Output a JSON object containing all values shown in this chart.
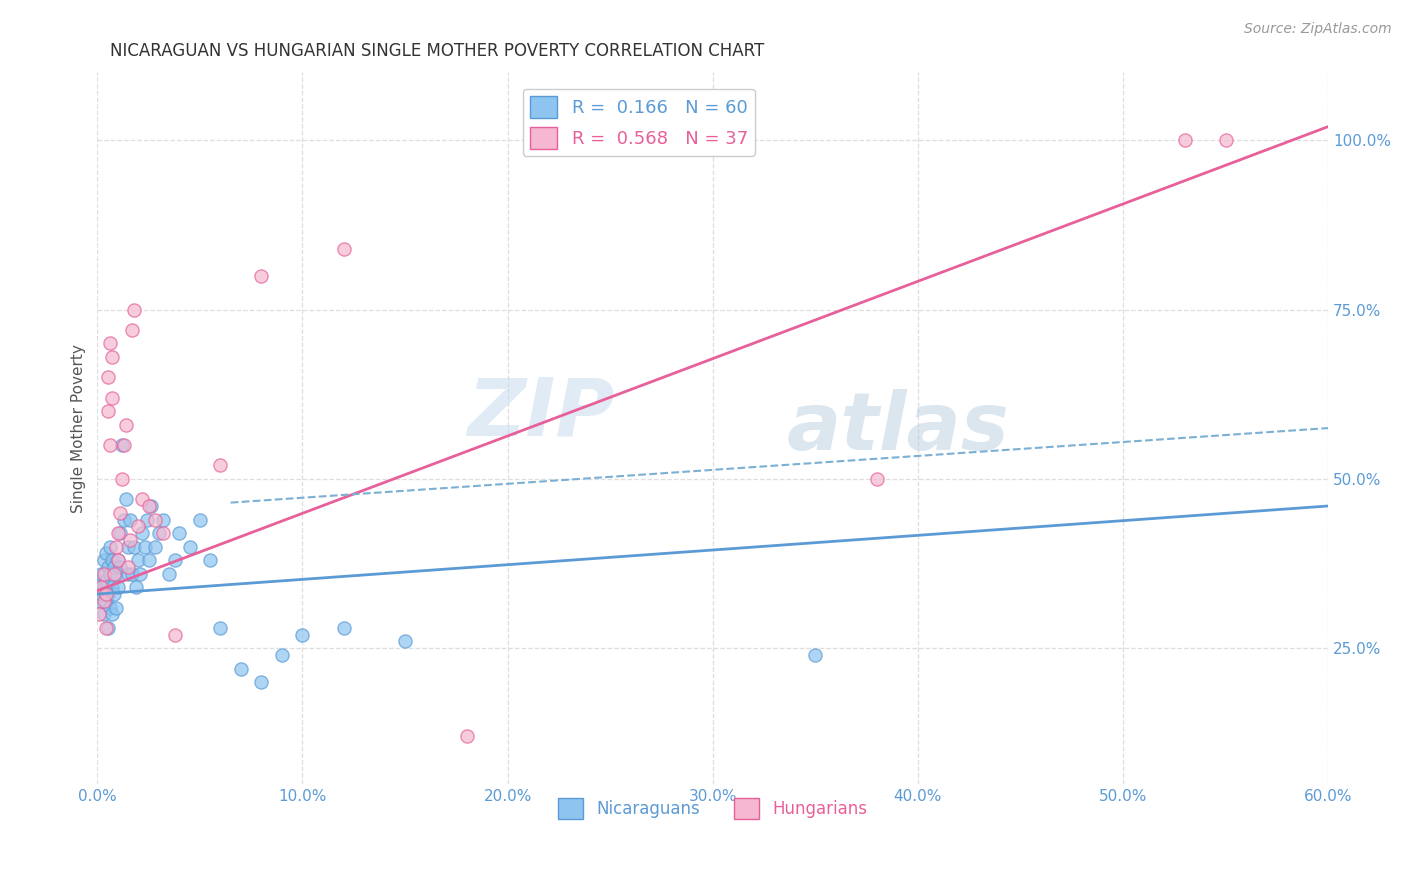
{
  "title": "NICARAGUAN VS HUNGARIAN SINGLE MOTHER POVERTY CORRELATION CHART",
  "source": "Source: ZipAtlas.com",
  "ylabel": "Single Mother Poverty",
  "right_yticklabels": [
    "25.0%",
    "50.0%",
    "75.0%",
    "100.0%"
  ],
  "right_yticks": [
    0.25,
    0.5,
    0.75,
    1.0
  ],
  "legend_blue": "R =  0.166   N = 60",
  "legend_pink": "R =  0.568   N = 37",
  "blue_color": "#8DC4F0",
  "pink_color": "#F5B8D0",
  "blue_edge": "#5B9BD5",
  "pink_edge": "#E8609A",
  "dashed_color": "#7BAFD4",
  "background_color": "#FFFFFF",
  "grid_color": "#DEDEDE",
  "scatter_alpha": 0.7,
  "scatter_size": 90,
  "xlim": [
    0.0,
    0.6
  ],
  "ylim": [
    0.05,
    1.1
  ],
  "blue_trend_x": [
    0.0,
    0.6
  ],
  "blue_trend_y": [
    0.33,
    0.46
  ],
  "pink_trend_x": [
    0.0,
    0.6
  ],
  "pink_trend_y": [
    0.335,
    1.02
  ],
  "dashed_trend_x": [
    0.065,
    0.6
  ],
  "dashed_trend_y": [
    0.465,
    0.575
  ],
  "watermark_zip": "ZIP",
  "watermark_atlas": "atlas",
  "xtick_labels": [
    "0.0%",
    "10.0%",
    "20.0%",
    "30.0%",
    "40.0%",
    "50.0%",
    "60.0%"
  ],
  "xtick_vals": [
    0.0,
    0.1,
    0.2,
    0.3,
    0.4,
    0.5,
    0.6
  ],
  "blue_scatter_x": [
    0.001,
    0.001,
    0.002,
    0.002,
    0.003,
    0.003,
    0.003,
    0.004,
    0.004,
    0.004,
    0.005,
    0.005,
    0.005,
    0.006,
    0.006,
    0.006,
    0.007,
    0.007,
    0.007,
    0.008,
    0.008,
    0.009,
    0.009,
    0.01,
    0.01,
    0.011,
    0.011,
    0.012,
    0.013,
    0.014,
    0.015,
    0.015,
    0.016,
    0.017,
    0.018,
    0.019,
    0.02,
    0.021,
    0.022,
    0.023,
    0.024,
    0.025,
    0.026,
    0.028,
    0.03,
    0.032,
    0.035,
    0.038,
    0.04,
    0.045,
    0.05,
    0.055,
    0.06,
    0.07,
    0.08,
    0.09,
    0.1,
    0.12,
    0.15,
    0.35
  ],
  "blue_scatter_y": [
    0.32,
    0.35,
    0.33,
    0.36,
    0.3,
    0.34,
    0.38,
    0.32,
    0.35,
    0.39,
    0.28,
    0.33,
    0.37,
    0.31,
    0.36,
    0.4,
    0.3,
    0.34,
    0.38,
    0.33,
    0.37,
    0.31,
    0.36,
    0.34,
    0.38,
    0.37,
    0.42,
    0.55,
    0.44,
    0.47,
    0.36,
    0.4,
    0.44,
    0.36,
    0.4,
    0.34,
    0.38,
    0.36,
    0.42,
    0.4,
    0.44,
    0.38,
    0.46,
    0.4,
    0.42,
    0.44,
    0.36,
    0.38,
    0.42,
    0.4,
    0.44,
    0.38,
    0.28,
    0.22,
    0.2,
    0.24,
    0.27,
    0.28,
    0.26,
    0.24
  ],
  "pink_scatter_x": [
    0.001,
    0.002,
    0.003,
    0.003,
    0.004,
    0.004,
    0.005,
    0.005,
    0.006,
    0.006,
    0.007,
    0.007,
    0.008,
    0.009,
    0.01,
    0.01,
    0.011,
    0.012,
    0.013,
    0.014,
    0.015,
    0.016,
    0.017,
    0.018,
    0.02,
    0.022,
    0.025,
    0.028,
    0.032,
    0.038,
    0.06,
    0.08,
    0.12,
    0.18,
    0.38,
    0.53,
    0.55
  ],
  "pink_scatter_y": [
    0.3,
    0.34,
    0.32,
    0.36,
    0.28,
    0.33,
    0.6,
    0.65,
    0.55,
    0.7,
    0.62,
    0.68,
    0.36,
    0.4,
    0.38,
    0.42,
    0.45,
    0.5,
    0.55,
    0.58,
    0.37,
    0.41,
    0.72,
    0.75,
    0.43,
    0.47,
    0.46,
    0.44,
    0.42,
    0.27,
    0.52,
    0.8,
    0.84,
    0.12,
    0.5,
    1.0,
    1.0
  ]
}
